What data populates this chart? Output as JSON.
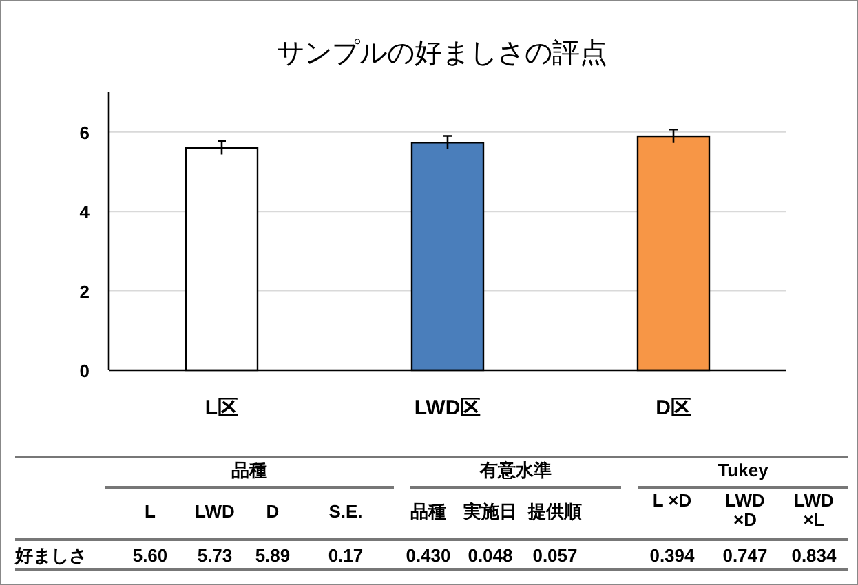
{
  "chart_data": {
    "type": "bar",
    "title": "サンプルの好ましさの評点",
    "categories": [
      "L区",
      "LWD区",
      "D区"
    ],
    "values": [
      5.6,
      5.73,
      5.89
    ],
    "colors": [
      "#ffffff",
      "#4a7ebb",
      "#f79646"
    ],
    "errors": [
      0.17,
      0.17,
      0.17
    ],
    "ylim": [
      0,
      7
    ],
    "yticks": [
      0,
      2,
      4,
      6
    ],
    "grid": "y",
    "annotations": [
      "品種",
      "有意水準",
      "Tukey",
      "L",
      "LWD",
      "D",
      "S.E.",
      "品種",
      "実施日",
      "提供順",
      "L ×D",
      "LWD ×D",
      "LWD ×L",
      "好ましさ",
      "5.60",
      "5.73",
      "5.89",
      "0.17",
      "0.430",
      "0.048",
      "0.057",
      "0.394",
      "0.747",
      "0.834"
    ]
  }
}
